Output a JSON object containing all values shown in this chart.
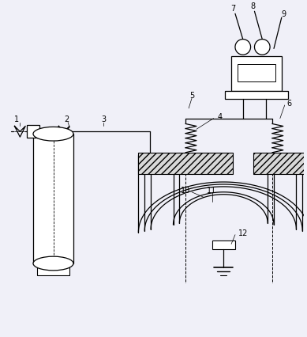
{
  "bg": "#f0f0f8",
  "lc": "#000000",
  "fig_w": 3.89,
  "fig_h": 4.27,
  "dpi": 100
}
